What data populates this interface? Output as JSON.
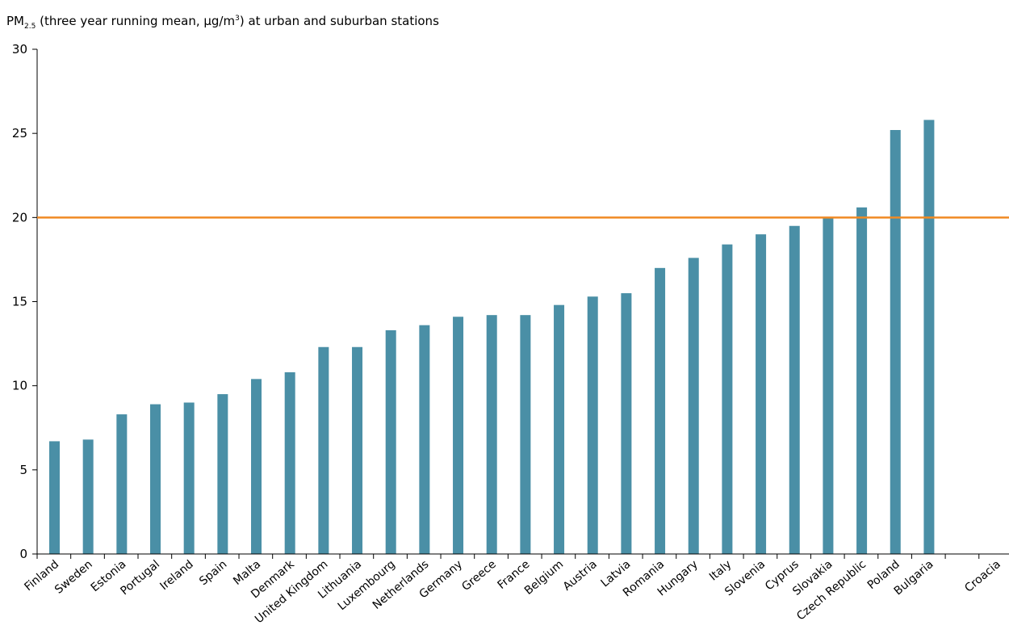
{
  "chart_data": {
    "type": "bar",
    "title": {
      "prefix": "PM",
      "subscript": "2.5",
      "mid": " (three year running mean, µg/m",
      "superscript": "3",
      "suffix": ") at urban and suburban stations"
    },
    "xlabel": "",
    "ylabel": "",
    "ylim": [
      0,
      30
    ],
    "yticks": [
      0,
      5,
      10,
      15,
      20,
      25,
      30
    ],
    "grid": false,
    "legend": "none",
    "categories": [
      "Finland",
      "Sweden",
      "Estonia",
      "Portugal",
      "Ireland",
      "Spain",
      "Malta",
      "Denmark",
      "United Kingdom",
      "Lithuania",
      "Luxembourg",
      "Netherlands",
      "Germany",
      "Greece",
      "France",
      "Belgium",
      "Austria",
      "Latvia",
      "Romania",
      "Hungary",
      "Italy",
      "Slovenia",
      "Cyprus",
      "Slovakia",
      "Czech Republic",
      "Poland",
      "Bulgaria",
      "",
      "Croacia"
    ],
    "values": [
      6.7,
      6.8,
      8.3,
      8.9,
      9.0,
      9.5,
      10.4,
      10.8,
      12.3,
      12.3,
      13.3,
      13.6,
      14.1,
      14.2,
      14.2,
      14.8,
      15.3,
      15.5,
      17.0,
      17.6,
      18.4,
      19.0,
      19.5,
      20.0,
      20.6,
      25.2,
      25.8,
      null,
      null
    ],
    "reference_line": {
      "value": 20,
      "color": "#f08a24"
    },
    "bar_color": "#4a8fa6"
  }
}
